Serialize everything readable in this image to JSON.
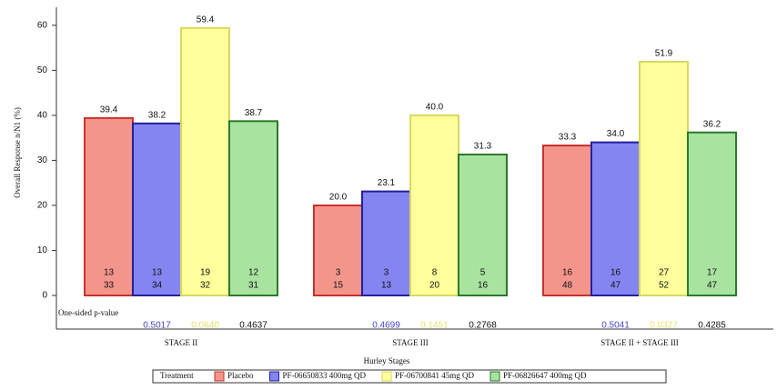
{
  "chart_data": {
    "type": "bar",
    "y_label": "Overall Response n/N1 (%)",
    "x_label": "Hurley Stages",
    "categories": [
      "STAGE II",
      "STAGE III",
      "STAGE II + STAGE III"
    ],
    "ylim": [
      0,
      64
    ],
    "yticks": [
      0,
      10,
      20,
      30,
      40,
      50,
      60
    ],
    "pvalue_title": "One-sided p-value",
    "legend_title": "Treatment",
    "series": [
      {
        "name": "Placebo",
        "color": "#f4958c",
        "edge": "#c8302a",
        "values": [
          39.4,
          20.0,
          33.3
        ],
        "value_labels": [
          "39.4",
          "20.0",
          "33.3"
        ],
        "n": [
          13,
          3,
          16
        ],
        "N": [
          33,
          15,
          48
        ]
      },
      {
        "name": "PF-06650833 400mg QD",
        "color": "#8585f2",
        "edge": "#2020a0",
        "values": [
          38.2,
          23.1,
          34.0
        ],
        "value_labels": [
          "38.2",
          "23.1",
          "34.0"
        ],
        "n": [
          13,
          3,
          16
        ],
        "N": [
          34,
          13,
          47
        ],
        "pvalues": [
          "0.5017",
          "0.4699",
          "0.5041"
        ],
        "ptext": "#4444cc"
      },
      {
        "name": "PF-06700841 45mg QD",
        "color": "#ffff9c",
        "edge": "#d8d860",
        "values": [
          59.4,
          40.0,
          51.9
        ],
        "value_labels": [
          "59.4",
          "40.0",
          "51.9"
        ],
        "n": [
          19,
          8,
          27
        ],
        "N": [
          32,
          20,
          52
        ],
        "pvalues": [
          "0.0640",
          "0.1451",
          "0.0327"
        ],
        "ptext": "#e8e070"
      },
      {
        "name": "PF-06826647 400mg QD",
        "color": "#a9e3a0",
        "edge": "#2a7a2a",
        "values": [
          38.7,
          31.3,
          36.2
        ],
        "value_labels": [
          "38.7",
          "31.3",
          "36.2"
        ],
        "n": [
          12,
          5,
          17
        ],
        "N": [
          31,
          16,
          47
        ],
        "pvalues": [
          "0.4637",
          "0.2768",
          "0.4285"
        ],
        "ptext": "#111111"
      }
    ]
  }
}
